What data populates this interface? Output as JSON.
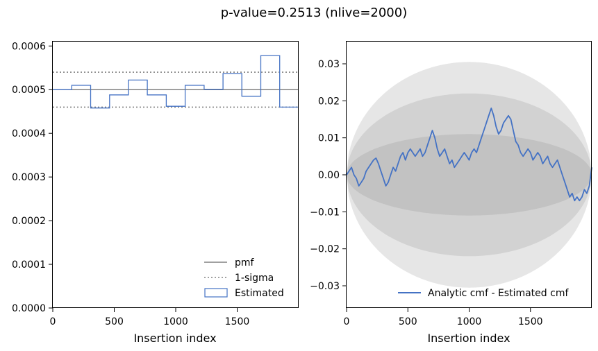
{
  "figure": {
    "title": "p-value=0.2513 (nlive=2000)"
  },
  "chart_data": [
    {
      "type": "line",
      "xlabel": "Insertion index",
      "ylabel": "",
      "xlim": [
        0,
        2000
      ],
      "ylim": [
        0,
        0.00061
      ],
      "x_ticks": [
        0,
        500,
        1000,
        1500
      ],
      "x_tick_labels": [
        "0",
        "500",
        "1000",
        "1500"
      ],
      "y_ticks": [
        0,
        0.0001,
        0.0002,
        0.0003,
        0.0004,
        0.0005,
        0.0006
      ],
      "y_tick_labels": [
        "0.0000",
        "0.0001",
        "0.0002",
        "0.0003",
        "0.0004",
        "0.0005",
        "0.0006"
      ],
      "grid": false,
      "legend_position": "lower-right",
      "series": [
        {
          "name": "pmf",
          "style": "solid",
          "color": "#808080",
          "value": 0.0005
        },
        {
          "name": "1-sigma",
          "style": "dotted",
          "color": "#808080",
          "values": [
            0.00054,
            0.00046
          ]
        },
        {
          "name": "Estimated",
          "style": "step",
          "color": "#4472c4",
          "bin_edges": [
            0,
            154,
            308,
            462,
            615,
            769,
            923,
            1077,
            1231,
            1385,
            1538,
            1692,
            1846,
            2000
          ],
          "values": [
            0.0005,
            0.00051,
            0.000458,
            0.000488,
            0.000522,
            0.000488,
            0.000462,
            0.00051,
            0.000501,
            0.000537,
            0.000485,
            0.000578,
            0.00046
          ]
        }
      ]
    },
    {
      "type": "line",
      "xlabel": "Insertion index",
      "ylabel": "",
      "xlim": [
        0,
        2000
      ],
      "ylim": [
        -0.036,
        0.036
      ],
      "x_ticks": [
        0,
        500,
        1000,
        1500
      ],
      "x_tick_labels": [
        "0",
        "500",
        "1000",
        "1500"
      ],
      "y_ticks": [
        0.03,
        0.02,
        0.01,
        0.0,
        -0.01,
        -0.02,
        -0.03
      ],
      "y_tick_labels": [
        "0.03",
        "0.02",
        "0.01",
        "0.00",
        "−0.01",
        "−0.02",
        "−0.03"
      ],
      "grid": false,
      "legend_position": "lower-right",
      "bands": [
        {
          "peak": 0.0305,
          "color": "#e6e6e6"
        },
        {
          "peak": 0.022,
          "color": "#d2d2d2"
        },
        {
          "peak": 0.011,
          "color": "#c2c2c2"
        }
      ],
      "series": [
        {
          "name": "Analytic cmf - Estimated cmf",
          "color": "#4472c4",
          "x": [
            0,
            20,
            40,
            60,
            80,
            100,
            120,
            140,
            160,
            180,
            200,
            220,
            240,
            260,
            280,
            300,
            320,
            340,
            360,
            380,
            400,
            420,
            440,
            460,
            480,
            500,
            520,
            540,
            560,
            580,
            600,
            620,
            640,
            660,
            680,
            700,
            720,
            740,
            760,
            780,
            800,
            820,
            840,
            860,
            880,
            900,
            920,
            940,
            960,
            980,
            1000,
            1020,
            1040,
            1060,
            1080,
            1100,
            1120,
            1140,
            1160,
            1180,
            1200,
            1220,
            1240,
            1260,
            1280,
            1300,
            1320,
            1340,
            1360,
            1380,
            1400,
            1420,
            1440,
            1460,
            1480,
            1500,
            1520,
            1540,
            1560,
            1580,
            1600,
            1620,
            1640,
            1660,
            1680,
            1700,
            1720,
            1740,
            1760,
            1780,
            1800,
            1820,
            1840,
            1860,
            1880,
            1900,
            1920,
            1940,
            1960,
            1980,
            2000
          ],
          "values": [
            0.0,
            0.001,
            0.002,
            0.0,
            -0.001,
            -0.003,
            -0.002,
            -0.001,
            0.001,
            0.002,
            0.003,
            0.004,
            0.0045,
            0.003,
            0.001,
            -0.001,
            -0.003,
            -0.002,
            0.0,
            0.002,
            0.001,
            0.003,
            0.005,
            0.006,
            0.004,
            0.006,
            0.007,
            0.006,
            0.005,
            0.006,
            0.007,
            0.005,
            0.006,
            0.008,
            0.01,
            0.012,
            0.01,
            0.007,
            0.005,
            0.006,
            0.007,
            0.005,
            0.003,
            0.004,
            0.002,
            0.003,
            0.004,
            0.005,
            0.006,
            0.005,
            0.004,
            0.006,
            0.007,
            0.006,
            0.008,
            0.01,
            0.012,
            0.014,
            0.016,
            0.018,
            0.016,
            0.013,
            0.011,
            0.012,
            0.014,
            0.015,
            0.016,
            0.015,
            0.012,
            0.009,
            0.008,
            0.006,
            0.005,
            0.006,
            0.007,
            0.006,
            0.004,
            0.005,
            0.006,
            0.005,
            0.003,
            0.004,
            0.005,
            0.003,
            0.002,
            0.003,
            0.004,
            0.002,
            0.0,
            -0.002,
            -0.004,
            -0.006,
            -0.005,
            -0.007,
            -0.006,
            -0.007,
            -0.006,
            -0.004,
            -0.005,
            -0.003,
            0.002
          ]
        }
      ]
    }
  ]
}
